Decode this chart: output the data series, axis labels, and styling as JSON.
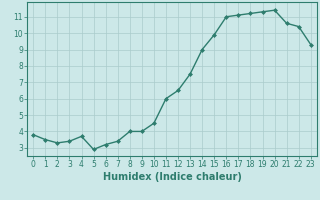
{
  "x": [
    0,
    1,
    2,
    3,
    4,
    5,
    6,
    7,
    8,
    9,
    10,
    11,
    12,
    13,
    14,
    15,
    16,
    17,
    18,
    19,
    20,
    21,
    22,
    23
  ],
  "y": [
    3.8,
    3.5,
    3.3,
    3.4,
    3.7,
    2.9,
    3.2,
    3.4,
    4.0,
    4.0,
    4.5,
    6.0,
    6.5,
    7.5,
    9.0,
    9.9,
    11.0,
    11.1,
    11.2,
    11.3,
    11.4,
    10.6,
    10.4,
    9.3
  ],
  "xlabel": "Humidex (Indice chaleur)",
  "xlim": [
    -0.5,
    23.5
  ],
  "ylim": [
    2.5,
    11.9
  ],
  "yticks": [
    3,
    4,
    5,
    6,
    7,
    8,
    9,
    10,
    11
  ],
  "xticks": [
    0,
    1,
    2,
    3,
    4,
    5,
    6,
    7,
    8,
    9,
    10,
    11,
    12,
    13,
    14,
    15,
    16,
    17,
    18,
    19,
    20,
    21,
    22,
    23
  ],
  "line_color": "#2e7d6e",
  "marker": "D",
  "marker_size": 2.0,
  "bg_color": "#cce8e8",
  "grid_color": "#aacccc",
  "tick_label_fontsize": 5.5,
  "xlabel_fontsize": 7.0,
  "line_width": 1.0
}
